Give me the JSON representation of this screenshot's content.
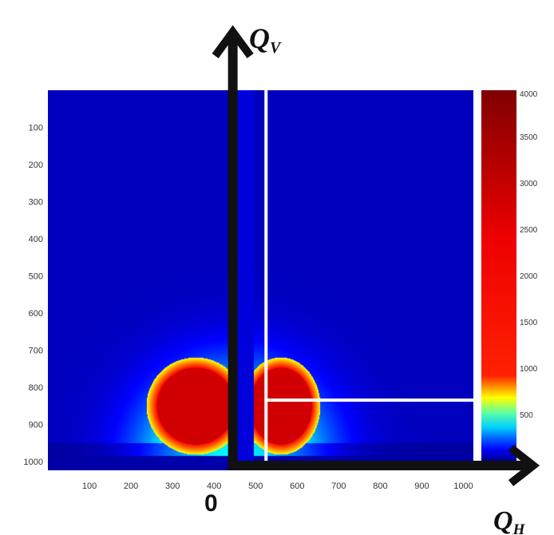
{
  "chart_data": {
    "type": "heatmap",
    "title": "",
    "x_axis": {
      "label_main": "Q",
      "label_sub": "H",
      "ticks": [
        "100",
        "200",
        "300",
        "400",
        "500",
        "600",
        "700",
        "800",
        "900",
        "1000"
      ],
      "range": [
        0,
        1024
      ]
    },
    "y_axis": {
      "label_main": "Q",
      "label_sub": "V",
      "ticks": [
        "100",
        "200",
        "300",
        "400",
        "500",
        "600",
        "700",
        "800",
        "900",
        "1000"
      ],
      "range": [
        0,
        1024
      ],
      "inverted": true
    },
    "origin_label": "0",
    "colorbar": {
      "ticks": [
        "4000",
        "3500",
        "3000",
        "2500",
        "2000",
        "1500",
        "1000",
        "500"
      ],
      "range": [
        0,
        4000
      ],
      "colormap": "jet"
    },
    "features": {
      "beamstop_x_range": [
        440,
        495
      ],
      "qv_axis_x": 445,
      "cut_vertical_x": 525,
      "cut_horizontal_y": 835,
      "cut_horizontal_x_range": [
        525,
        1024
      ],
      "scattering_center": [
        445,
        1000
      ],
      "peak_regions": [
        {
          "x_range": [
            280,
            430
          ],
          "y_range": [
            760,
            940
          ],
          "value": 4000
        },
        {
          "x_range": [
            500,
            620
          ],
          "y_range": [
            760,
            940
          ],
          "value": 4000
        }
      ]
    },
    "colors": {
      "axis_arrow": "#111111",
      "cut_lines": "#ffffff"
    }
  }
}
